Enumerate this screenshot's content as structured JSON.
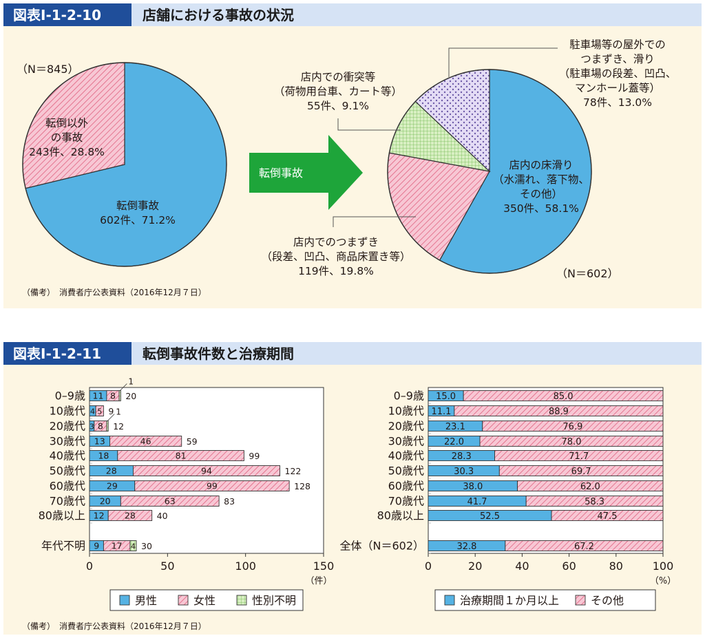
{
  "colors": {
    "blue": "#55b2e3",
    "pink": "#f4a9bf",
    "green": "#c8e6a8",
    "purple": "#d4c9ee",
    "header_dark": "#1f4e9a",
    "header_light": "#d6e3f5",
    "panel_bg": "#fdf6e3",
    "arrow": "#1ea53a"
  },
  "fig10": {
    "label": "図表Ⅰ-1-2-10",
    "title": "店舗における事故の状況",
    "source": "（備考）　消費者庁公表資料（2016年12月７日）",
    "arrow_label": "転倒事故",
    "chart_data": [
      {
        "type": "pie",
        "n_label": "（N＝845）",
        "slices": [
          {
            "label_lines": [
              "転倒事故",
              "602件、71.2%"
            ],
            "count": 602,
            "percent": 71.2,
            "color": "#55b2e3",
            "pattern": "solid"
          },
          {
            "label_lines": [
              "転倒以外",
              "の事故",
              "243件、28.8%"
            ],
            "count": 243,
            "percent": 28.8,
            "color": "#f4a9bf",
            "pattern": "hatch"
          }
        ]
      },
      {
        "type": "pie",
        "n_label": "（N＝602）",
        "slices": [
          {
            "label_lines": [
              "店内の床滑り",
              "（水濡れ、落下物、",
              "その他）",
              "350件、58.1%"
            ],
            "count": 350,
            "percent": 58.1,
            "color": "#55b2e3",
            "pattern": "solid"
          },
          {
            "label_lines": [
              "店内でのつまずき",
              "（段差、凹凸、商品床置き等）",
              "119件、19.8%"
            ],
            "count": 119,
            "percent": 19.8,
            "color": "#f4a9bf",
            "pattern": "hatch"
          },
          {
            "label_lines": [
              "店内での衝突等",
              "（荷物用台車、カート等）",
              "55件、9.1%"
            ],
            "count": 55,
            "percent": 9.1,
            "color": "#c8e6a8",
            "pattern": "grid"
          },
          {
            "label_lines": [
              "駐車場等の屋外での",
              "つまずき、滑り",
              "（駐車場の段差、凹凸、",
              "マンホール蓋等）",
              "78件、13.0%"
            ],
            "count": 78,
            "percent": 13.0,
            "color": "#d4c9ee",
            "pattern": "dots"
          }
        ]
      }
    ]
  },
  "fig11": {
    "label": "図表Ⅰ-1-2-11",
    "title": "転倒事故件数と治療期間",
    "source": "（備考）　消費者庁公表資料（2016年12月７日）",
    "chart_data": [
      {
        "type": "bar",
        "orientation": "horizontal",
        "stacked": true,
        "categories": [
          "0–9歳",
          "10歳代",
          "20歳代",
          "30歳代",
          "40歳代",
          "50歳代",
          "60歳代",
          "70歳代",
          "80歳以上",
          "年代不明"
        ],
        "series": [
          {
            "name": "男性",
            "values": [
              11,
              4,
              3,
              13,
              18,
              28,
              29,
              20,
              12,
              9
            ],
            "color": "#55b2e3",
            "pattern": "solid"
          },
          {
            "name": "女性",
            "values": [
              8,
              5,
              8,
              46,
              81,
              94,
              99,
              63,
              28,
              17
            ],
            "color": "#f4a9bf",
            "pattern": "hatch"
          },
          {
            "name": "性別不明",
            "values": [
              1,
              0,
              1,
              0,
              0,
              0,
              0,
              0,
              0,
              4
            ],
            "color": "#c8e6a8",
            "pattern": "grid"
          }
        ],
        "totals": [
          20,
          9,
          12,
          59,
          99,
          122,
          128,
          83,
          40,
          30
        ],
        "xlim": [
          0,
          150
        ],
        "xticks": [
          0,
          50,
          100,
          150
        ],
        "xlabel": "（件）",
        "legend_position": "bottom"
      },
      {
        "type": "bar",
        "orientation": "horizontal",
        "stacked": true,
        "categories": [
          "0–9歳",
          "10歳代",
          "20歳代",
          "30歳代",
          "40歳代",
          "50歳代",
          "60歳代",
          "70歳代",
          "80歳以上",
          "全体（N＝602）"
        ],
        "series": [
          {
            "name": "治療期間１か月以上",
            "values": [
              15.0,
              11.1,
              23.1,
              22.0,
              28.3,
              30.3,
              38.0,
              41.7,
              52.5,
              32.8
            ],
            "color": "#55b2e3",
            "pattern": "solid"
          },
          {
            "name": "その他",
            "values": [
              85.0,
              88.9,
              76.9,
              78.0,
              71.7,
              69.7,
              62.0,
              58.3,
              47.5,
              67.2
            ],
            "color": "#f4a9bf",
            "pattern": "hatch"
          }
        ],
        "xlim": [
          0,
          100
        ],
        "xticks": [
          0,
          20,
          40,
          60,
          80,
          100
        ],
        "xlabel": "（%）",
        "legend_position": "bottom"
      }
    ]
  }
}
